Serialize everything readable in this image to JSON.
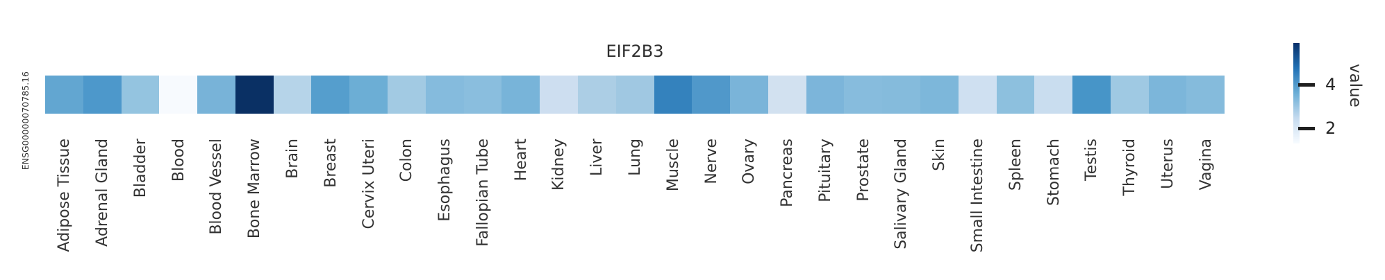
{
  "figure": {
    "title": "EIF2B3",
    "row_label": "ENSG00000070785.16",
    "colorbar": {
      "label": "value",
      "ticks": [
        {
          "label": "4",
          "y": 122
        },
        {
          "label": "2",
          "y": 185
        }
      ],
      "gradient_stops": [
        "#08306b",
        "#2171b5",
        "#6baed6",
        "#c6dbef",
        "#f7fbff"
      ]
    }
  },
  "chart_data": {
    "type": "heatmap",
    "title": "EIF2B3",
    "rows": [
      "ENSG00000070785.16"
    ],
    "categories": [
      "Adipose Tissue",
      "Adrenal Gland",
      "Bladder",
      "Blood",
      "Blood Vessel",
      "Bone Marrow",
      "Brain",
      "Breast",
      "Cervix Uteri",
      "Colon",
      "Esophagus",
      "Fallopian Tube",
      "Heart",
      "Kidney",
      "Liver",
      "Lung",
      "Muscle",
      "Nerve",
      "Ovary",
      "Pancreas",
      "Pituitary",
      "Prostate",
      "Salivary Gland",
      "Skin",
      "Small Intestine",
      "Spleen",
      "Stomach",
      "Testis",
      "Thyroid",
      "Uterus",
      "Vagina"
    ],
    "series": [
      {
        "name": "ENSG00000070785.16",
        "values": [
          3.7,
          4.0,
          3.1,
          1.4,
          3.5,
          5.9,
          2.8,
          3.9,
          3.6,
          3.0,
          3.3,
          3.3,
          3.5,
          2.3,
          2.9,
          3.0,
          4.5,
          4.0,
          3.5,
          2.2,
          3.4,
          3.3,
          3.3,
          3.4,
          2.3,
          3.2,
          2.4,
          4.1,
          3.0,
          3.5,
          3.3
        ],
        "colors": [
          "#62a6d1",
          "#4d98cb",
          "#94c4e0",
          "#f7fafe",
          "#78b3d8",
          "#0a3064",
          "#b6d4e9",
          "#559ecd",
          "#6caed5",
          "#a2cae3",
          "#85bbdd",
          "#8abede",
          "#78b4d9",
          "#cddef0",
          "#accee5",
          "#a0c8e2",
          "#3482bd",
          "#5098ca",
          "#7ab4d9",
          "#d2e1f0",
          "#7cb5da",
          "#87bcdd",
          "#85bbdc",
          "#7db7da",
          "#cfe0f1",
          "#8dc0de",
          "#c9ddef",
          "#4795c8",
          "#9fc9e3",
          "#7cb6da",
          "#85bbdc"
        ]
      }
    ],
    "legend": {
      "label": "value",
      "ticks": [
        2,
        4
      ],
      "position": "right"
    },
    "colormap": "Blues",
    "value_range_estimate": [
      1.3,
      5.9
    ],
    "values_are_estimates_from_colorbar": true
  }
}
